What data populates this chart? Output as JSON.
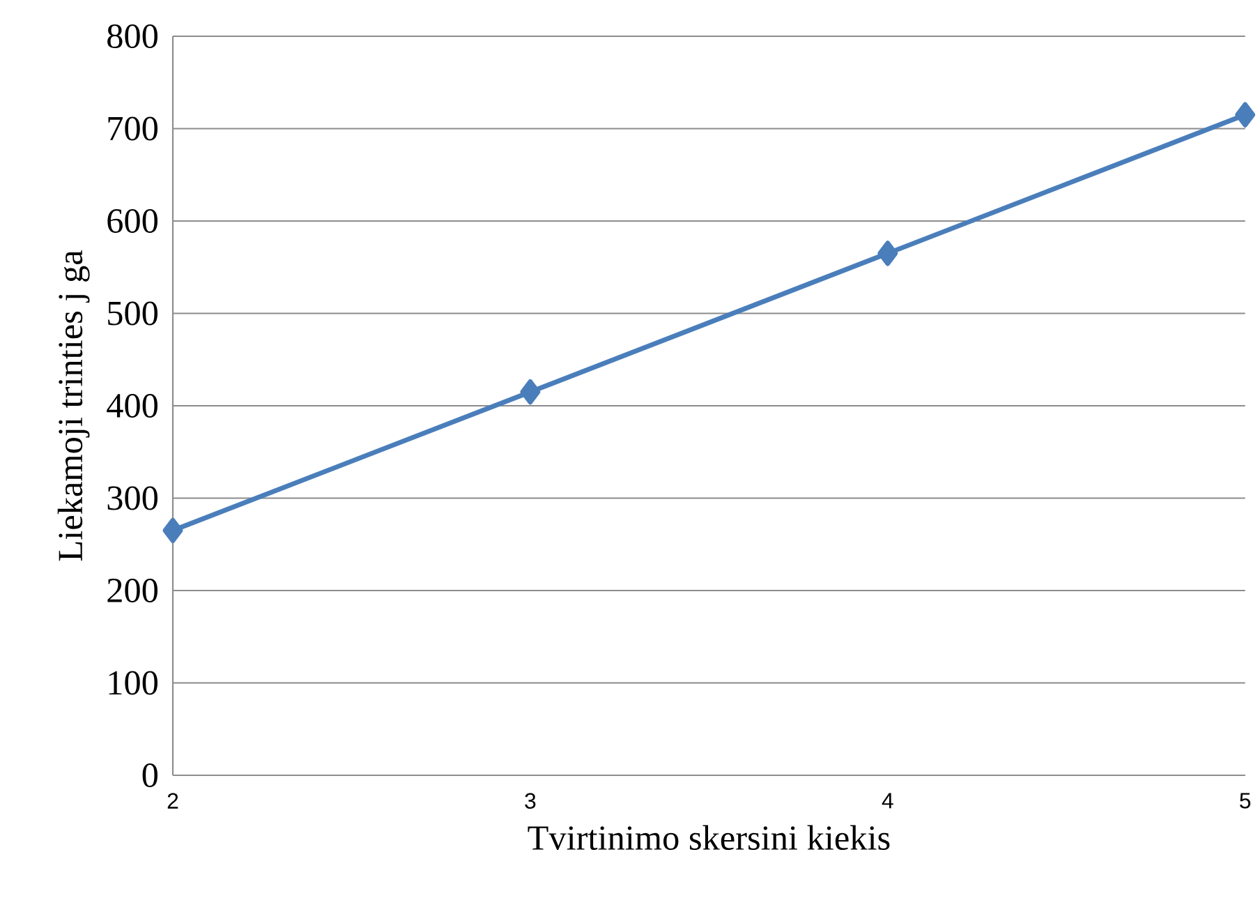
{
  "chart_data": {
    "type": "line",
    "xlabel": "Tvirtinimo skersini  kiekis",
    "ylabel": "Liekamoji trinties j ga",
    "x": [
      2,
      3,
      4,
      5
    ],
    "series": [
      {
        "color": "#4a7ebb",
        "values": [
          265,
          415,
          565,
          715
        ]
      }
    ],
    "xlim": [
      2,
      5
    ],
    "xticks": [
      2,
      3,
      4,
      5
    ],
    "ylim": [
      0,
      800
    ],
    "yticks": [
      0,
      100,
      200,
      300,
      400,
      500,
      600,
      700,
      800
    ],
    "grid": "y",
    "marker": "diamond",
    "line_style": "solid"
  }
}
